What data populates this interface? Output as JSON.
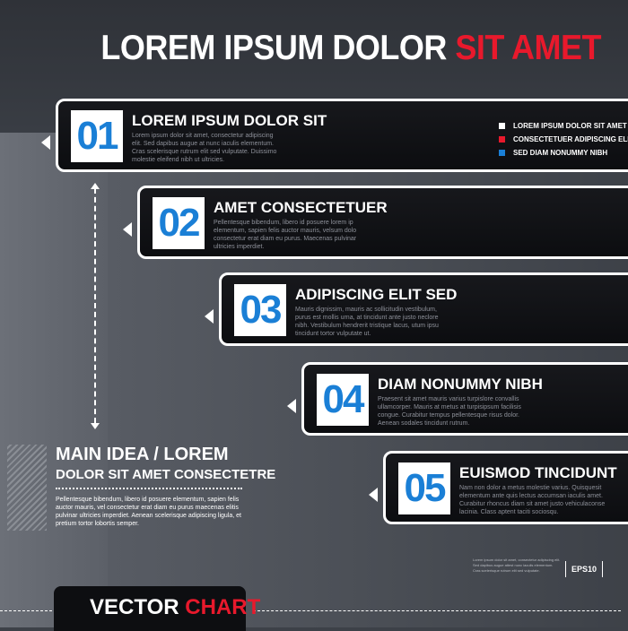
{
  "header": {
    "title_main": "LOREM IPSUM DOLOR ",
    "title_accent": "SIT AMET"
  },
  "colors": {
    "accent": "#e8192c",
    "number": "#1a7fd6",
    "panel": "#111215",
    "background": "#3d4148"
  },
  "legend": [
    {
      "label": "LOREM IPSUM DOLOR SIT AMET",
      "color": "#ffffff"
    },
    {
      "label": "CONSECTETUER ADIPISCING ELIT",
      "color": "#e8192c"
    },
    {
      "label": "SED DIAM NONUMMY NIBH",
      "color": "#1a7fd6"
    }
  ],
  "steps": [
    {
      "number": "01",
      "title": "LOREM IPSUM DOLOR SIT",
      "desc": "Lorem ipsum dolor sit amet, consectetur adipiscing elit. Sed dapibus augue at nunc iaculis elementum. Cras scelerisque rutrum elit sed vulputate. Duissimo molestie eleifend nibh ut ultricies."
    },
    {
      "number": "02",
      "title": "AMET CONSECTETUER",
      "desc": "Pellentesque bibendum, libero id posuere lorem ip elementum, sapien felis auctor mauris, velsum dolo consectetur erat diam eu purus. Maecenas pulvinar ultricies imperdiet."
    },
    {
      "number": "03",
      "title": "ADIPISCING ELIT SED",
      "desc": "Mauris dignissim, mauris ac sollicitudin vestibulum, purus est mollis urna, at tincidunt ante justo neclore nibh. Vestibulum hendrerit tristique lacus, utum ipsu tincidunt tortor vulputate ut."
    },
    {
      "number": "04",
      "title": "DIAM NONUMMY NIBH",
      "desc": "Praesent sit amet mauris varius turpislore convallis ullamcorper. Mauris at metus at turpisipsum facilisis congue. Curabitur tempus pellentesque risus dolor. Aenean sodales tincidunt rutrum."
    },
    {
      "number": "05",
      "title": "EUISMOD TINCIDUNT",
      "desc": "Nam non dolor a metus molestie varius. Quisquesit elementum ante quis lectus accumsan iaculis amet. Curabitur rhoncus diam sit amet justo vehiculaconse lacinia. Class aptent taciti sociosqu."
    }
  ],
  "main_idea": {
    "title": "MAIN IDEA",
    "title_accent": "LOREM",
    "subtitle": "DOLOR SIT AMET CONSECTETRE",
    "desc": "Pellentesque bibendum, libero id posuere elementum, sapien felis auctor mauris, vel consectetur erat diam eu purus maecenas elitis pulvinar ultricies imperdiet. Aenean scelerisque adipiscing ligula, et pretium tortor lobortis semper."
  },
  "footer": {
    "small_text": "Lorem ipsum dolor sit amet, consectetur adipiscing elit. Sed dapibus augue attest nunc iaculis elementum. Cras scelerisque rutrum elit sed vulputate.",
    "eps": "EPS10",
    "vector_main": "VECTOR",
    "vector_accent": "CHART"
  }
}
